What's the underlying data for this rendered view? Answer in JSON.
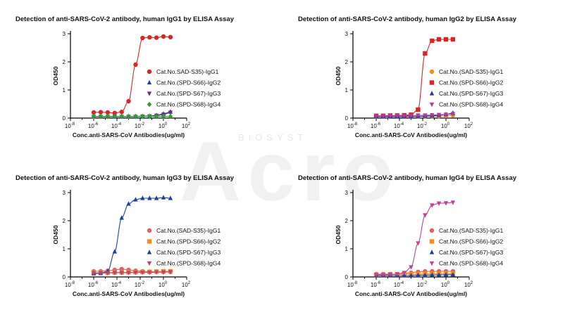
{
  "watermark": {
    "small": "BIOSYST",
    "big": "Acro"
  },
  "chart_data": [
    {
      "type": "scatter",
      "title": "Detection of anti-SARS-CoV-2 antibody, human IgG1 by ELISA Assay",
      "xlabel": "Conc.anti-SARS-CoV Antibodies(ug/ml)",
      "ylabel": "OD450",
      "x_scale": "log10",
      "xlim": [
        1e-08,
        100
      ],
      "ylim": [
        0,
        3
      ],
      "x_ticks": [
        "10-8",
        "10-6",
        "10-4",
        "10-2",
        "100",
        "102"
      ],
      "y_ticks": [
        "0",
        "1",
        "2",
        "3"
      ],
      "legend_position": "right",
      "series": [
        {
          "name": "Cat.No.SAD-S35)-IgG1",
          "color": "#d62728",
          "marker": "circle",
          "x": [
            1e-06,
            4e-06,
            1.6e-05,
            6.4e-05,
            0.000256,
            0.001,
            0.004,
            0.016,
            0.064,
            0.25,
            1,
            4
          ],
          "y": [
            0.2,
            0.21,
            0.2,
            0.18,
            0.22,
            0.6,
            1.9,
            2.85,
            2.87,
            2.86,
            2.9,
            2.88
          ]
        },
        {
          "name": "Cat.No.(SPD-S66)-IgG2",
          "color": "#1f3f9f",
          "marker": "triangle-up",
          "x": [
            1e-06,
            4e-06,
            1.6e-05,
            6.4e-05,
            0.000256,
            0.001,
            0.004,
            0.016,
            0.064,
            0.25,
            1,
            4
          ],
          "y": [
            0.06,
            0.06,
            0.06,
            0.06,
            0.06,
            0.06,
            0.06,
            0.07,
            0.07,
            0.1,
            0.15,
            0.22
          ]
        },
        {
          "name": "Cat.No.(SPD-S67)-IgG3",
          "color": "#6a2a8a",
          "marker": "triangle-down",
          "x": [
            1e-06,
            4e-06,
            1.6e-05,
            6.4e-05,
            0.000256,
            0.001,
            0.004,
            0.016,
            0.064,
            0.25,
            1,
            4
          ],
          "y": [
            0.05,
            0.05,
            0.05,
            0.05,
            0.05,
            0.05,
            0.05,
            0.06,
            0.07,
            0.09,
            0.13,
            0.2
          ]
        },
        {
          "name": "Cat.No.(SPD-S68)-IgG4",
          "color": "#2ca02c",
          "marker": "diamond",
          "x": [
            1e-06,
            4e-06,
            1.6e-05,
            6.4e-05,
            0.000256,
            0.001,
            0.004,
            0.016,
            0.064,
            0.25,
            1,
            4
          ],
          "y": [
            0.06,
            0.06,
            0.06,
            0.06,
            0.06,
            0.06,
            0.06,
            0.06,
            0.06,
            0.06,
            0.06,
            0.06
          ]
        }
      ]
    },
    {
      "type": "scatter",
      "title": "Detection of anti-SARS-CoV-2 antibody, human IgG2 by ELISA Assay",
      "xlabel": "Conc.anti-SARS-CoV Antibodies(ug/ml)",
      "ylabel": "OD450",
      "x_scale": "log10",
      "xlim": [
        1e-08,
        100
      ],
      "ylim": [
        0,
        3
      ],
      "x_ticks": [
        "10-8",
        "10-6",
        "10-4",
        "10-2",
        "100",
        "102"
      ],
      "y_ticks": [
        "0",
        "1",
        "2",
        "3"
      ],
      "legend_position": "right",
      "series": [
        {
          "name": "Cat.No.(SAD-S35)-IgG1",
          "color": "#f28e1c",
          "marker": "circle",
          "x": [
            1e-06,
            4e-06,
            1.6e-05,
            6.4e-05,
            0.000256,
            0.001,
            0.004,
            0.016,
            0.064,
            0.25,
            1,
            4
          ],
          "y": [
            0.06,
            0.06,
            0.06,
            0.06,
            0.06,
            0.06,
            0.06,
            0.06,
            0.06,
            0.07,
            0.08,
            0.1
          ]
        },
        {
          "name": "Cat.No.(SPD-S66)-IgG2",
          "color": "#d62728",
          "marker": "square",
          "x": [
            1e-06,
            4e-06,
            1.6e-05,
            6.4e-05,
            0.000256,
            0.001,
            0.004,
            0.016,
            0.064,
            0.25,
            1,
            4
          ],
          "y": [
            0.08,
            0.08,
            0.09,
            0.09,
            0.1,
            0.12,
            0.3,
            2.3,
            2.75,
            2.8,
            2.8,
            2.8
          ]
        },
        {
          "name": "Cat.No.(SPD-S67)-IgG3",
          "color": "#1f3f9f",
          "marker": "triangle-up",
          "x": [
            1e-06,
            4e-06,
            1.6e-05,
            6.4e-05,
            0.000256,
            0.001,
            0.004,
            0.016,
            0.064,
            0.25,
            1,
            4
          ],
          "y": [
            0.05,
            0.05,
            0.05,
            0.05,
            0.05,
            0.05,
            0.06,
            0.07,
            0.08,
            0.1,
            0.13,
            0.18
          ]
        },
        {
          "name": "Cat.No.(SPD-S68)-IgG4",
          "color": "#b03aa0",
          "marker": "triangle-down",
          "x": [
            1e-06,
            4e-06,
            1.6e-05,
            6.4e-05,
            0.000256,
            0.001,
            0.004,
            0.016,
            0.064,
            0.25,
            1,
            4
          ],
          "y": [
            0.07,
            0.07,
            0.08,
            0.08,
            0.08,
            0.09,
            0.1,
            0.1,
            0.11,
            0.12,
            0.13,
            0.15
          ]
        }
      ]
    },
    {
      "type": "scatter",
      "title": "Detection of anti-SARS-CoV-2 antibody, human IgG3 by ELISA Assay",
      "xlabel": "Conc.anti-SARS-CoV Antibodies(ug/ml)",
      "ylabel": "OD450",
      "x_scale": "log10",
      "xlim": [
        1e-08,
        100
      ],
      "ylim": [
        0,
        3
      ],
      "x_ticks": [
        "10-8",
        "10-6",
        "10-4",
        "10-2",
        "100",
        "102"
      ],
      "y_ticks": [
        "0",
        "1",
        "2",
        "3"
      ],
      "legend_position": "right",
      "series": [
        {
          "name": "Cat.No.(SAD-S35)-IgG1",
          "color": "#e06060",
          "marker": "circle",
          "x": [
            1e-06,
            4e-06,
            1.6e-05,
            6.4e-05,
            0.000256,
            0.001,
            0.004,
            0.016,
            0.064,
            0.25,
            1,
            4
          ],
          "y": [
            0.2,
            0.2,
            0.22,
            0.25,
            0.28,
            0.25,
            0.22,
            0.2,
            0.19,
            0.19,
            0.18,
            0.18
          ]
        },
        {
          "name": "Cat.No.(SPD-S66)-IgG2",
          "color": "#f28e1c",
          "marker": "square",
          "x": [
            1e-06,
            4e-06,
            1.6e-05,
            6.4e-05,
            0.000256,
            0.001,
            0.004,
            0.016,
            0.064,
            0.25,
            1,
            4
          ],
          "y": [
            0.15,
            0.15,
            0.15,
            0.16,
            0.16,
            0.17,
            0.17,
            0.18,
            0.18,
            0.19,
            0.2,
            0.2
          ]
        },
        {
          "name": "Cat.No.(SPD-S67)-IgG3",
          "color": "#1f3f9f",
          "marker": "triangle-up",
          "x": [
            1e-06,
            4e-06,
            1.6e-05,
            6.4e-05,
            0.000256,
            0.001,
            0.004,
            0.016,
            0.064,
            0.25,
            1,
            4
          ],
          "y": [
            0.12,
            0.13,
            0.2,
            0.9,
            2.1,
            2.6,
            2.75,
            2.8,
            2.8,
            2.8,
            2.82,
            2.8
          ]
        },
        {
          "name": "Cat.No.(SPD-S68)-IgG4",
          "color": "#c0407a",
          "marker": "triangle-down",
          "x": [
            1e-06,
            4e-06,
            1.6e-05,
            6.4e-05,
            0.000256,
            0.001,
            0.004,
            0.016,
            0.064,
            0.25,
            1,
            4
          ],
          "y": [
            0.14,
            0.14,
            0.14,
            0.15,
            0.15,
            0.15,
            0.16,
            0.16,
            0.16,
            0.17,
            0.17,
            0.18
          ]
        }
      ]
    },
    {
      "type": "scatter",
      "title": "Detection of anti-SARS-CoV-2 antibody, human IgG4 by ELISA Assay",
      "xlabel": "Conc.anti-SARS-CoV Antibodies(ug/ml)",
      "ylabel": "OD450",
      "x_scale": "log10",
      "xlim": [
        1e-08,
        100
      ],
      "ylim": [
        0,
        3
      ],
      "x_ticks": [
        "10-8",
        "10-6",
        "10-4",
        "10-2",
        "100",
        "102"
      ],
      "y_ticks": [
        "0",
        "1",
        "2",
        "3"
      ],
      "legend_position": "right",
      "series": [
        {
          "name": "Cat.No.(SAD-S35)-IgG1",
          "color": "#e06060",
          "marker": "circle",
          "x": [
            1e-06,
            4e-06,
            1.6e-05,
            6.4e-05,
            0.000256,
            0.001,
            0.004,
            0.016,
            0.064,
            0.25,
            1,
            4
          ],
          "y": [
            0.1,
            0.1,
            0.1,
            0.1,
            0.12,
            0.15,
            0.18,
            0.2,
            0.2,
            0.2,
            0.2,
            0.2
          ]
        },
        {
          "name": "Cat.No.(SPD-S66)-IgG2",
          "color": "#f28e1c",
          "marker": "square",
          "x": [
            1e-06,
            4e-06,
            1.6e-05,
            6.4e-05,
            0.000256,
            0.001,
            0.004,
            0.016,
            0.064,
            0.25,
            1,
            4
          ],
          "y": [
            0.08,
            0.08,
            0.09,
            0.09,
            0.1,
            0.1,
            0.1,
            0.11,
            0.11,
            0.12,
            0.12,
            0.12
          ]
        },
        {
          "name": "Cat.No.(SPD-S67)-IgG3",
          "color": "#1f3f9f",
          "marker": "triangle-up",
          "x": [
            1e-06,
            4e-06,
            1.6e-05,
            6.4e-05,
            0.000256,
            0.001,
            0.004,
            0.016,
            0.064,
            0.25,
            1,
            4
          ],
          "y": [
            0.05,
            0.05,
            0.05,
            0.05,
            0.05,
            0.05,
            0.06,
            0.06,
            0.07,
            0.07,
            0.08,
            0.08
          ]
        },
        {
          "name": "Cat.No.(SPD-S68)-IgG4",
          "color": "#c0409a",
          "marker": "triangle-down",
          "x": [
            1e-06,
            4e-06,
            1.6e-05,
            6.4e-05,
            0.000256,
            0.001,
            0.004,
            0.016,
            0.064,
            0.25,
            1,
            4
          ],
          "y": [
            0.08,
            0.08,
            0.09,
            0.1,
            0.15,
            0.35,
            1.2,
            2.2,
            2.55,
            2.62,
            2.63,
            2.65
          ]
        }
      ]
    }
  ]
}
